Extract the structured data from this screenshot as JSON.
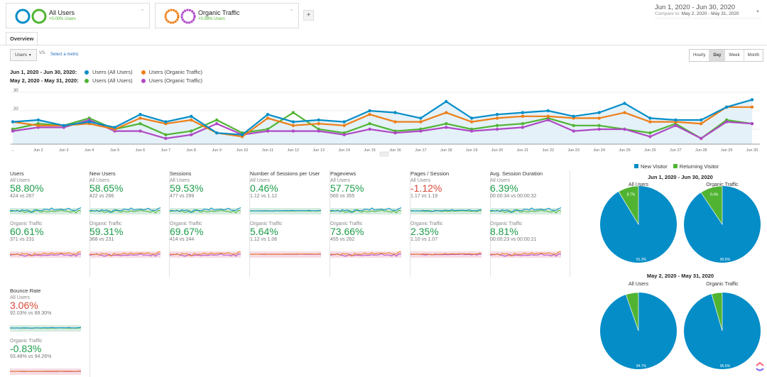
{
  "segments": [
    {
      "name": "All Users",
      "delta": "+0.00% Users",
      "colors": [
        "#058dc7",
        "#50b432"
      ]
    },
    {
      "name": "Organic Traffic",
      "delta": "+0.98% Users",
      "colors": [
        "#ed7e17",
        "#af49c5"
      ]
    }
  ],
  "add_segment_label": "+",
  "date_range": {
    "main": "Jun 1, 2020 - Jun 30, 2020",
    "compare_prefix": "Compare to:",
    "compare": "May 2, 2020 - May 31, 2020"
  },
  "tabs": [
    {
      "label": "Overview"
    }
  ],
  "metric_selector": {
    "value": "Users",
    "vs": "VS.",
    "select_metric": "Select a metric"
  },
  "granularity": [
    {
      "label": "Hourly"
    },
    {
      "label": "Day",
      "active": true
    },
    {
      "label": "Week"
    },
    {
      "label": "Month"
    }
  ],
  "legend": [
    {
      "period": "Jun 1, 2020 - Jun 30, 2020:",
      "items": [
        {
          "label": "Users (All Users)",
          "color": "#058dc7"
        },
        {
          "label": "Users (Organic Traffic)",
          "color": "#ed7e17"
        }
      ]
    },
    {
      "period": "May 2, 2020 - May 31, 2020:",
      "items": [
        {
          "label": "Users (All Users)",
          "color": "#50b432"
        },
        {
          "label": "Users (Organic Traffic)",
          "color": "#af49c5"
        }
      ]
    }
  ],
  "chart_data": {
    "type": "line",
    "y_ticks": [
      "30",
      "20",
      "10"
    ],
    "ylim": [
      0,
      30
    ],
    "x": [
      "...",
      "Jun 2",
      "Jun 3",
      "Jun 4",
      "Jun 5",
      "Jun 6",
      "Jun 7",
      "Jun 8",
      "Jun 9",
      "Jun 10",
      "Jun 11",
      "Jun 12",
      "Jun 13",
      "Jun 14",
      "Jun 15",
      "Jun 16",
      "Jun 17",
      "Jun 18",
      "Jun 19",
      "Jun 20",
      "Jun 21",
      "Jun 22",
      "Jun 23",
      "Jun 24",
      "Jun 25",
      "Jun 26",
      "Jun 27",
      "Jun 28",
      "Jun 29",
      "Jun 30"
    ],
    "series": [
      {
        "name": "Users (All Users) Jun 1, 2020 - Jun 30, 2020",
        "color": "#058dc7",
        "values": [
          14,
          15,
          12,
          14,
          11,
          18,
          14,
          17,
          8,
          7,
          18,
          14,
          15,
          14,
          20,
          19,
          16,
          25,
          16,
          18,
          19,
          20,
          17,
          19,
          24,
          16,
          15,
          15,
          22,
          26
        ]
      },
      {
        "name": "Users (Organic Traffic) Jun 1, 2020 - Jun 30, 2020",
        "color": "#ed7e17",
        "values": [
          14,
          12,
          12,
          13,
          10,
          16,
          13,
          15,
          8,
          6,
          16,
          12,
          13,
          12,
          18,
          14,
          14,
          19,
          14,
          16,
          17,
          17,
          16,
          16,
          19,
          14,
          14,
          13,
          22,
          22
        ]
      },
      {
        "name": "Users (All Users) May 2, 2020 - May 31, 2020",
        "color": "#50b432",
        "values": [
          10,
          13,
          12,
          16,
          10,
          13,
          7,
          9,
          15,
          8,
          10,
          19,
          10,
          8,
          13,
          9,
          10,
          13,
          10,
          12,
          13,
          16,
          12,
          12,
          10,
          8,
          13,
          5,
          15,
          13
        ]
      },
      {
        "name": "Users (Organic Traffic) May 2, 2020 - May 31, 2020",
        "color": "#af49c5",
        "values": [
          9,
          11,
          11,
          15,
          9,
          9,
          5,
          7,
          13,
          7,
          9,
          9,
          9,
          7,
          10,
          8,
          9,
          11,
          9,
          10,
          11,
          15,
          9,
          10,
          10,
          6,
          12,
          5,
          14,
          13
        ]
      }
    ],
    "grid": true
  },
  "metrics": [
    {
      "title": "Users",
      "rows": [
        {
          "group": "All Users",
          "pct": "58.80%",
          "trend": "pos",
          "cmp": "424 vs 267"
        },
        {
          "group": "Organic Traffic",
          "pct": "60.61%",
          "trend": "pos",
          "cmp": "371 vs 231"
        }
      ]
    },
    {
      "title": "New Users",
      "rows": [
        {
          "group": "All Users",
          "pct": "58.65%",
          "trend": "pos",
          "cmp": "422 vs 266"
        },
        {
          "group": "Organic Traffic",
          "pct": "59.31%",
          "trend": "pos",
          "cmp": "368 vs 231"
        }
      ]
    },
    {
      "title": "Sessions",
      "rows": [
        {
          "group": "All Users",
          "pct": "59.53%",
          "trend": "pos",
          "cmp": "477 vs 299"
        },
        {
          "group": "Organic Traffic",
          "pct": "69.67%",
          "trend": "pos",
          "cmp": "414 vs 244"
        }
      ]
    },
    {
      "title": "Number of Sessions per User",
      "rows": [
        {
          "group": "All Users",
          "pct": "0.46%",
          "trend": "pos",
          "cmp": "1.12 vs 1.12"
        },
        {
          "group": "Organic Traffic",
          "pct": "5.64%",
          "trend": "pos",
          "cmp": "1.12 vs 1.06"
        }
      ]
    },
    {
      "title": "Pageviews",
      "rows": [
        {
          "group": "All Users",
          "pct": "57.75%",
          "trend": "pos",
          "cmp": "560 vs 355"
        },
        {
          "group": "Organic Traffic",
          "pct": "73.66%",
          "trend": "pos",
          "cmp": "455 vs 262"
        }
      ]
    },
    {
      "title": "Pages / Session",
      "rows": [
        {
          "group": "All Users",
          "pct": "-1.12%",
          "trend": "neg",
          "cmp": "1.17 vs 1.19"
        },
        {
          "group": "Organic Traffic",
          "pct": "2.35%",
          "trend": "pos",
          "cmp": "1.10 vs 1.07"
        }
      ]
    },
    {
      "title": "Avg. Session Duration",
      "rows": [
        {
          "group": "All Users",
          "pct": "6.39%",
          "trend": "pos",
          "cmp": "00:00:34 vs 00:00:32"
        },
        {
          "group": "Organic Traffic",
          "pct": "8.81%",
          "trend": "pos",
          "cmp": "00:00:23 vs 00:00:21"
        }
      ]
    },
    {
      "title": "Bounce Rate",
      "rows": [
        {
          "group": "All Users",
          "pct": "3.06%",
          "trend": "neg",
          "cmp": "92.03% vs 89.30%"
        },
        {
          "group": "Organic Traffic",
          "pct": "-0.83%",
          "trend": "pos",
          "cmp": "93.48% vs 94.26%"
        }
      ]
    }
  ],
  "pies": {
    "legend": [
      {
        "label": "New Visitor",
        "color": "#058dc7"
      },
      {
        "label": "Returning Visitor",
        "color": "#50b432"
      }
    ],
    "periods": [
      {
        "title": "Jun 1, 2020 - Jun 30, 2020",
        "charts": [
          {
            "label": "All Users",
            "new": 91.3,
            "returning": 8.7,
            "new_label": "91.3%",
            "ret_label": "8.7%"
          },
          {
            "label": "Organic Traffic",
            "new": 90.6,
            "returning": 9.4,
            "new_label": "90.6%",
            "ret_label": "9.4%"
          }
        ]
      },
      {
        "title": "May 2, 2020 - May 31, 2020",
        "charts": [
          {
            "label": "All Users",
            "new": 94.7,
            "returning": 5.3,
            "new_label": "94.7%"
          },
          {
            "label": "Organic Traffic",
            "new": 95.5,
            "returning": 4.5,
            "new_label": "95.5%"
          }
        ]
      }
    ]
  }
}
